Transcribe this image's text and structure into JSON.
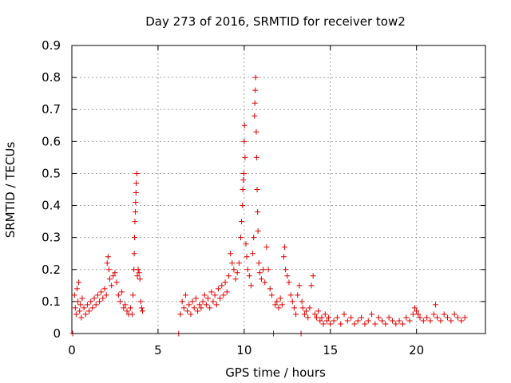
{
  "chart_data": {
    "type": "scatter",
    "title": "Day 273 of 2016, SRMTID for receiver tow2",
    "xlabel": "GPS time / hours",
    "ylabel": "SRMTID / TECUs",
    "xlim": [
      0,
      24
    ],
    "ylim": [
      0,
      0.9
    ],
    "grid": true,
    "marker": "+",
    "color": "#e00000",
    "x_ticks": [
      0,
      5,
      10,
      15,
      20
    ],
    "x_tick_labels": [
      "0",
      "5",
      "10",
      "15",
      "20"
    ],
    "y_ticks": [
      0,
      0.1,
      0.2,
      0.3,
      0.4,
      0.5,
      0.6,
      0.7,
      0.8,
      0.9
    ],
    "y_tick_labels": [
      "0",
      "0.1",
      "0.2",
      "0.3",
      "0.4",
      "0.5",
      "0.6",
      "0.7",
      "0.8",
      "0.9"
    ],
    "series": [
      {
        "name": "SRMTID",
        "points": [
          [
            0.05,
            0.0
          ],
          [
            0.15,
            0.12
          ],
          [
            0.2,
            0.08
          ],
          [
            0.25,
            0.06
          ],
          [
            0.3,
            0.14
          ],
          [
            0.35,
            0.1
          ],
          [
            0.4,
            0.16
          ],
          [
            0.45,
            0.07
          ],
          [
            0.5,
            0.09
          ],
          [
            0.55,
            0.05
          ],
          [
            0.6,
            0.11
          ],
          [
            0.7,
            0.08
          ],
          [
            0.8,
            0.06
          ],
          [
            0.9,
            0.09
          ],
          [
            1.0,
            0.07
          ],
          [
            1.1,
            0.1
          ],
          [
            1.2,
            0.08
          ],
          [
            1.3,
            0.11
          ],
          [
            1.4,
            0.09
          ],
          [
            1.5,
            0.12
          ],
          [
            1.6,
            0.1
          ],
          [
            1.7,
            0.13
          ],
          [
            1.8,
            0.11
          ],
          [
            1.9,
            0.14
          ],
          [
            2.0,
            0.12
          ],
          [
            2.05,
            0.22
          ],
          [
            2.1,
            0.24
          ],
          [
            2.15,
            0.2
          ],
          [
            2.2,
            0.17
          ],
          [
            2.3,
            0.15
          ],
          [
            2.4,
            0.18
          ],
          [
            2.5,
            0.19
          ],
          [
            2.6,
            0.16
          ],
          [
            2.7,
            0.12
          ],
          [
            2.8,
            0.1
          ],
          [
            2.9,
            0.13
          ],
          [
            3.0,
            0.08
          ],
          [
            3.1,
            0.09
          ],
          [
            3.2,
            0.07
          ],
          [
            3.3,
            0.06
          ],
          [
            3.4,
            0.08
          ],
          [
            3.5,
            0.06
          ],
          [
            3.55,
            0.12
          ],
          [
            3.6,
            0.2
          ],
          [
            3.62,
            0.25
          ],
          [
            3.64,
            0.3
          ],
          [
            3.66,
            0.35
          ],
          [
            3.68,
            0.38
          ],
          [
            3.7,
            0.41
          ],
          [
            3.72,
            0.44
          ],
          [
            3.74,
            0.47
          ],
          [
            3.76,
            0.5
          ],
          [
            3.8,
            0.18
          ],
          [
            3.85,
            0.2
          ],
          [
            3.9,
            0.19
          ],
          [
            3.95,
            0.17
          ],
          [
            4.0,
            0.1
          ],
          [
            4.05,
            0.08
          ],
          [
            4.1,
            0.07
          ],
          [
            6.2,
            0.0
          ],
          [
            6.3,
            0.06
          ],
          [
            6.4,
            0.1
          ],
          [
            6.5,
            0.08
          ],
          [
            6.6,
            0.12
          ],
          [
            6.7,
            0.07
          ],
          [
            6.8,
            0.09
          ],
          [
            6.9,
            0.06
          ],
          [
            7.0,
            0.1
          ],
          [
            7.1,
            0.08
          ],
          [
            7.2,
            0.11
          ],
          [
            7.3,
            0.07
          ],
          [
            7.4,
            0.09
          ],
          [
            7.5,
            0.08
          ],
          [
            7.6,
            0.1
          ],
          [
            7.7,
            0.12
          ],
          [
            7.8,
            0.09
          ],
          [
            7.9,
            0.11
          ],
          [
            8.0,
            0.08
          ],
          [
            8.1,
            0.13
          ],
          [
            8.2,
            0.1
          ],
          [
            8.3,
            0.12
          ],
          [
            8.4,
            0.09
          ],
          [
            8.5,
            0.14
          ],
          [
            8.6,
            0.11
          ],
          [
            8.7,
            0.15
          ],
          [
            8.8,
            0.12
          ],
          [
            8.9,
            0.16
          ],
          [
            9.0,
            0.13
          ],
          [
            9.1,
            0.18
          ],
          [
            9.2,
            0.25
          ],
          [
            9.3,
            0.22
          ],
          [
            9.4,
            0.2
          ],
          [
            9.5,
            0.17
          ],
          [
            9.6,
            0.19
          ],
          [
            9.7,
            0.22
          ],
          [
            9.8,
            0.3
          ],
          [
            9.85,
            0.35
          ],
          [
            9.9,
            0.4
          ],
          [
            9.92,
            0.45
          ],
          [
            9.95,
            0.48
          ],
          [
            9.98,
            0.5
          ],
          [
            10.0,
            0.6
          ],
          [
            10.02,
            0.65
          ],
          [
            10.05,
            0.55
          ],
          [
            10.1,
            0.28
          ],
          [
            10.15,
            0.24
          ],
          [
            10.2,
            0.2
          ],
          [
            10.3,
            0.18
          ],
          [
            10.4,
            0.15
          ],
          [
            10.5,
            0.25
          ],
          [
            10.55,
            0.3
          ],
          [
            10.6,
            0.68
          ],
          [
            10.62,
            0.72
          ],
          [
            10.64,
            0.76
          ],
          [
            10.66,
            0.8
          ],
          [
            10.7,
            0.63
          ],
          [
            10.72,
            0.55
          ],
          [
            10.75,
            0.45
          ],
          [
            10.78,
            0.38
          ],
          [
            10.8,
            0.32
          ],
          [
            10.85,
            0.22
          ],
          [
            10.9,
            0.19
          ],
          [
            11.0,
            0.17
          ],
          [
            11.1,
            0.2
          ],
          [
            11.2,
            0.16
          ],
          [
            11.3,
            0.27
          ],
          [
            11.4,
            0.2
          ],
          [
            11.5,
            0.14
          ],
          [
            11.6,
            0.12
          ],
          [
            11.7,
            0.0
          ],
          [
            11.8,
            0.09
          ],
          [
            11.9,
            0.1
          ],
          [
            12.0,
            0.08
          ],
          [
            12.1,
            0.11
          ],
          [
            12.2,
            0.09
          ],
          [
            12.3,
            0.24
          ],
          [
            12.35,
            0.27
          ],
          [
            12.4,
            0.2
          ],
          [
            12.5,
            0.18
          ],
          [
            12.6,
            0.16
          ],
          [
            12.7,
            0.12
          ],
          [
            12.8,
            0.1
          ],
          [
            12.9,
            0.08
          ],
          [
            13.0,
            0.06
          ],
          [
            13.1,
            0.12
          ],
          [
            13.2,
            0.15
          ],
          [
            13.3,
            0.0
          ],
          [
            13.35,
            0.1
          ],
          [
            13.4,
            0.08
          ],
          [
            13.5,
            0.06
          ],
          [
            13.6,
            0.07
          ],
          [
            13.7,
            0.05
          ],
          [
            13.8,
            0.08
          ],
          [
            13.9,
            0.15
          ],
          [
            14.0,
            0.18
          ],
          [
            14.1,
            0.06
          ],
          [
            14.2,
            0.05
          ],
          [
            14.3,
            0.07
          ],
          [
            14.4,
            0.04
          ],
          [
            14.5,
            0.05
          ],
          [
            14.6,
            0.03
          ],
          [
            14.7,
            0.06
          ],
          [
            14.8,
            0.04
          ],
          [
            14.9,
            0.05
          ],
          [
            15.0,
            0.03
          ],
          [
            15.2,
            0.04
          ],
          [
            15.4,
            0.05
          ],
          [
            15.6,
            0.03
          ],
          [
            15.8,
            0.06
          ],
          [
            16.0,
            0.04
          ],
          [
            16.2,
            0.05
          ],
          [
            16.4,
            0.03
          ],
          [
            16.6,
            0.04
          ],
          [
            16.8,
            0.05
          ],
          [
            17.0,
            0.03
          ],
          [
            17.2,
            0.04
          ],
          [
            17.4,
            0.06
          ],
          [
            17.6,
            0.03
          ],
          [
            17.8,
            0.05
          ],
          [
            18.0,
            0.04
          ],
          [
            18.2,
            0.03
          ],
          [
            18.4,
            0.05
          ],
          [
            18.6,
            0.04
          ],
          [
            18.8,
            0.03
          ],
          [
            19.0,
            0.04
          ],
          [
            19.2,
            0.03
          ],
          [
            19.4,
            0.05
          ],
          [
            19.6,
            0.04
          ],
          [
            19.8,
            0.06
          ],
          [
            19.9,
            0.08
          ],
          [
            20.0,
            0.07
          ],
          [
            20.1,
            0.06
          ],
          [
            20.2,
            0.05
          ],
          [
            20.4,
            0.04
          ],
          [
            20.6,
            0.05
          ],
          [
            20.8,
            0.04
          ],
          [
            21.0,
            0.06
          ],
          [
            21.1,
            0.09
          ],
          [
            21.2,
            0.05
          ],
          [
            21.4,
            0.04
          ],
          [
            21.6,
            0.06
          ],
          [
            21.8,
            0.05
          ],
          [
            22.0,
            0.04
          ],
          [
            22.2,
            0.06
          ],
          [
            22.4,
            0.05
          ],
          [
            22.6,
            0.04
          ],
          [
            22.8,
            0.05
          ]
        ]
      }
    ]
  }
}
